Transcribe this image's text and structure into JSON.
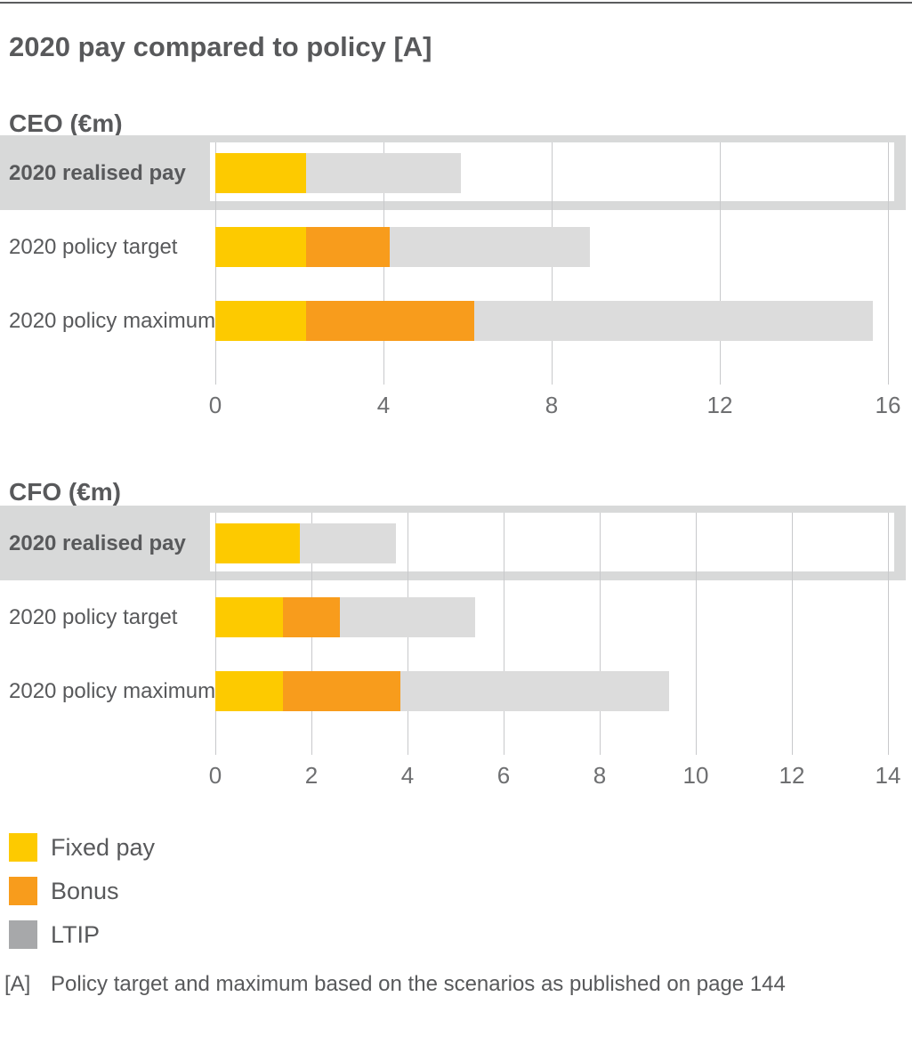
{
  "page": {
    "title": "2020 pay compared to policy [A]",
    "footnote_marker": "[A]",
    "footnote_text": "Policy target and maximum based on the scenarios as published on page 144"
  },
  "colors": {
    "fixed_pay": "#FDCA00",
    "bonus": "#F89C1C",
    "ltip_bar": "#DCDCDC",
    "ltip_legend": "#A7A8AA",
    "highlight_band": "#D8D9D9",
    "gridline": "#C8C9CB",
    "text_dark": "#58595B",
    "axis_text": "#6E6F71"
  },
  "legend": [
    {
      "label": "Fixed pay",
      "color_key": "fixed_pay"
    },
    {
      "label": "Bonus",
      "color_key": "bonus"
    },
    {
      "label": "LTIP",
      "color_key": "ltip_legend"
    }
  ],
  "chart_data": [
    {
      "type": "bar",
      "orientation": "horizontal",
      "stacked": true,
      "title": "CEO (€m)",
      "unit": "€m",
      "categories": [
        "2020 realised pay",
        "2020 policy target",
        "2020 policy maximum"
      ],
      "highlighted_category": "2020 realised pay",
      "series": [
        {
          "name": "Fixed pay",
          "values": [
            2.15,
            2.15,
            2.15
          ]
        },
        {
          "name": "Bonus",
          "values": [
            0,
            2.0,
            4.0
          ]
        },
        {
          "name": "LTIP",
          "values": [
            3.7,
            4.75,
            9.5
          ]
        }
      ],
      "totals": [
        5.85,
        8.9,
        15.65
      ],
      "xlim": [
        0,
        16
      ],
      "xticks": [
        0,
        4,
        8,
        12,
        16
      ],
      "grid": true,
      "legend_position": "bottom-left"
    },
    {
      "type": "bar",
      "orientation": "horizontal",
      "stacked": true,
      "title": "CFO (€m)",
      "unit": "€m",
      "categories": [
        "2020 realised pay",
        "2020 policy target",
        "2020 policy maximum"
      ],
      "highlighted_category": "2020 realised pay",
      "series": [
        {
          "name": "Fixed pay",
          "values": [
            1.75,
            1.4,
            1.4
          ]
        },
        {
          "name": "Bonus",
          "values": [
            0,
            1.2,
            2.45
          ]
        },
        {
          "name": "LTIP",
          "values": [
            2.0,
            2.8,
            5.6
          ]
        }
      ],
      "totals": [
        3.75,
        5.4,
        9.45
      ],
      "xlim": [
        0,
        14
      ],
      "xticks": [
        0,
        2,
        4,
        6,
        8,
        10,
        12,
        14
      ],
      "grid": true,
      "legend_position": "bottom-left"
    }
  ]
}
